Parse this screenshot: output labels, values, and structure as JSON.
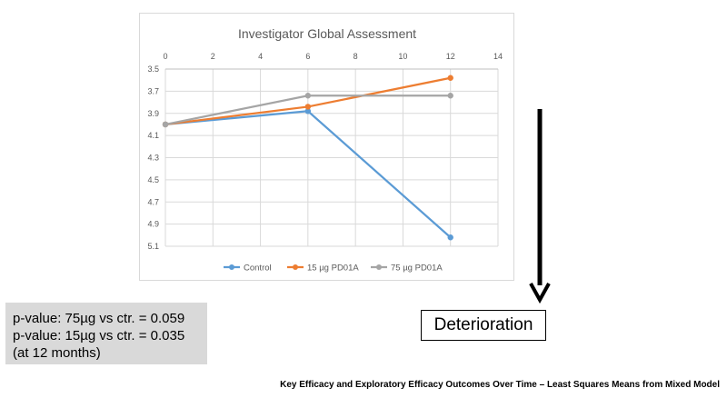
{
  "chart_data": {
    "type": "line",
    "title": "Investigator Global Assessment",
    "xlabel": "",
    "ylabel": "",
    "xlim": [
      0,
      14
    ],
    "ylim": [
      3.5,
      5.1
    ],
    "y_reversed": true,
    "x_axis_position": "top",
    "x_ticks": [
      "0",
      "2",
      "4",
      "6",
      "8",
      "10",
      "12",
      "14"
    ],
    "y_ticks": [
      "3.5",
      "3.7",
      "3.9",
      "4.1",
      "4.3",
      "4.5",
      "4.7",
      "4.9",
      "5.1"
    ],
    "grid": true,
    "legend_position": "bottom",
    "x": [
      0,
      6,
      12
    ],
    "series": [
      {
        "name": "Control",
        "color": "#5b9bd5",
        "values": [
          4.0,
          3.88,
          5.02
        ]
      },
      {
        "name": "15 µg PD01A",
        "color": "#ed7d31",
        "values": [
          4.0,
          3.84,
          3.58
        ]
      },
      {
        "name": "75 µg PD01A",
        "color": "#a5a5a5",
        "values": [
          4.0,
          3.74,
          3.74
        ]
      }
    ]
  },
  "stats": {
    "line1": "p-value: 75µg vs ctr. = 0.059",
    "line2": "p-value: 15µg vs ctr. = 0.035",
    "line3": "(at 12 months)"
  },
  "annotation": {
    "deterioration_label": "Deterioration"
  },
  "caption": "Key Efficacy and Exploratory Efficacy Outcomes Over Time – Least Squares Means from Mixed Model"
}
